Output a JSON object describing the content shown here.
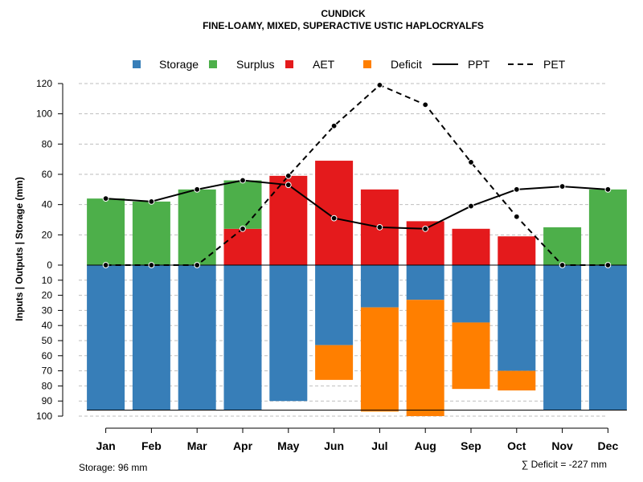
{
  "chart_data": {
    "type": "bar",
    "title": "CUNDICK",
    "subtitle": "FINE-LOAMY, MIXED, SUPERACTIVE USTIC HAPLOCRYALFS",
    "ylabel": "Inputs | Outputs | Storage    (mm)",
    "categories": [
      "Jan",
      "Feb",
      "Mar",
      "Apr",
      "May",
      "Jun",
      "Jul",
      "Aug",
      "Sep",
      "Oct",
      "Nov",
      "Dec"
    ],
    "upper_ylim": [
      0,
      120
    ],
    "upper_ticks": [
      "0",
      "20",
      "40",
      "60",
      "80",
      "100",
      "120"
    ],
    "lower_ylim": [
      0,
      100
    ],
    "lower_ticks": [
      "10",
      "20",
      "30",
      "40",
      "50",
      "60",
      "70",
      "80",
      "90",
      "100"
    ],
    "storage_capacity": 96,
    "grid": true,
    "legend_position": "top",
    "legend": [
      "Storage",
      "Surplus",
      "AET",
      "Deficit",
      "PPT",
      "PET"
    ],
    "colors": {
      "storage": "#377EB8",
      "surplus": "#4DAF4A",
      "aet": "#E41A1C",
      "deficit": "#FF7F00",
      "line": "#000000",
      "grid": "#bebebe"
    },
    "series": [
      {
        "name": "Surplus",
        "values": [
          44,
          42,
          50,
          32,
          0,
          0,
          0,
          0,
          0,
          0,
          25,
          50
        ]
      },
      {
        "name": "AET",
        "values": [
          0,
          0,
          0,
          24,
          59,
          69,
          50,
          29,
          24,
          19,
          0,
          0
        ]
      },
      {
        "name": "Storage",
        "values": [
          96,
          96,
          96,
          96,
          90,
          53,
          28,
          23,
          38,
          70,
          96,
          96
        ]
      },
      {
        "name": "Deficit",
        "values": [
          0,
          0,
          0,
          0,
          0,
          23,
          69,
          77,
          44,
          13,
          0,
          0
        ]
      },
      {
        "name": "PPT",
        "values": [
          44,
          42,
          50,
          56,
          53,
          31,
          25,
          24,
          39,
          50,
          52,
          50
        ]
      },
      {
        "name": "PET",
        "values": [
          0,
          0,
          0,
          24,
          59,
          92,
          119,
          106,
          68,
          32,
          0,
          0
        ]
      }
    ],
    "footer_left": "Storage: 96 mm",
    "footer_right": "∑ Deficit = -227 mm"
  }
}
